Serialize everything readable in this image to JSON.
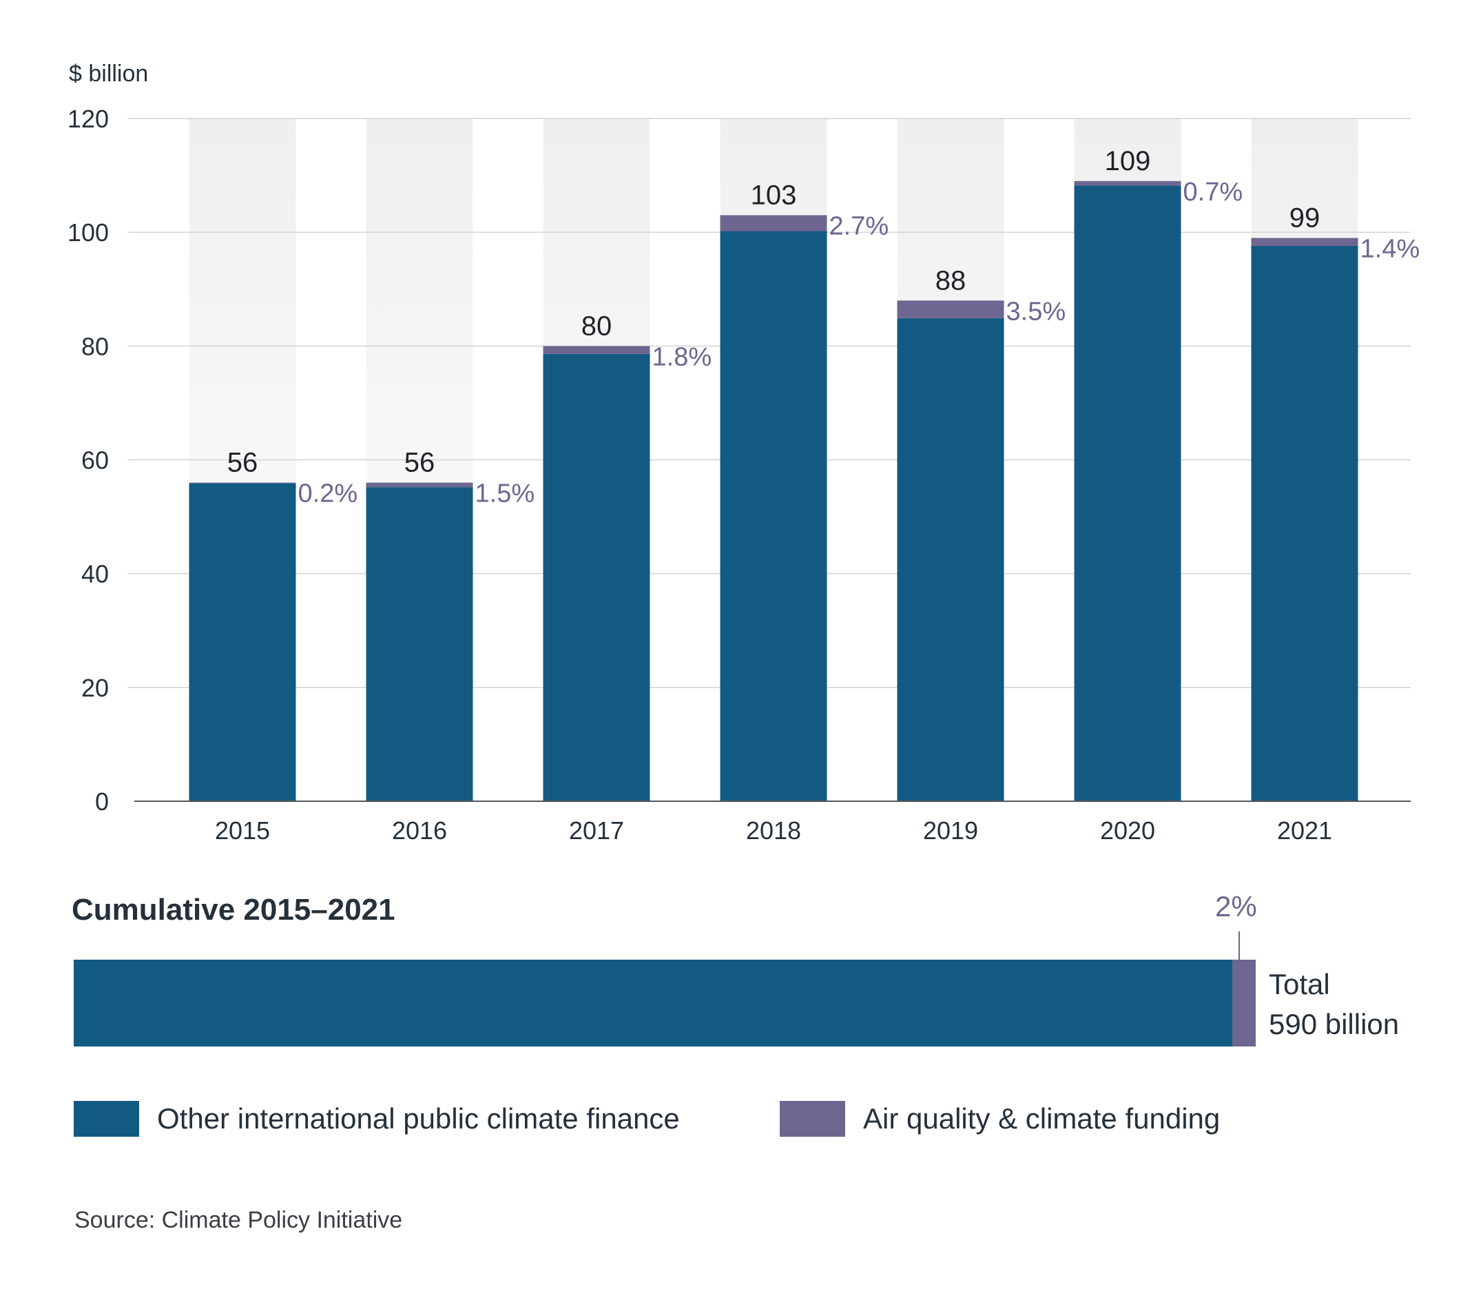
{
  "colors": {
    "main": "#135a83",
    "air": "#6e6690",
    "bg_column": "#eef0f0"
  },
  "chart_data": {
    "type": "bar",
    "stacked": true,
    "ylabel": "$ billion",
    "ylim": [
      0,
      120
    ],
    "yticks": [
      0,
      20,
      40,
      60,
      80,
      100,
      120
    ],
    "grid": true,
    "categories": [
      "2015",
      "2016",
      "2017",
      "2018",
      "2019",
      "2020",
      "2021"
    ],
    "totals": [
      56,
      56,
      80,
      103,
      88,
      109,
      99
    ],
    "total_labels": [
      "56",
      "56",
      "80",
      "103",
      "88",
      "109",
      "99"
    ],
    "air_share_labels": [
      "0.2%",
      "1.5%",
      "1.8%",
      "2.7%",
      "3.5%",
      "0.7%",
      "1.4%"
    ],
    "series": [
      {
        "name": "Other international public climate finance",
        "values": [
          55.9,
          55.2,
          78.6,
          100.2,
          84.9,
          108.2,
          97.6
        ]
      },
      {
        "name": "Air quality & climate funding",
        "values": [
          0.1,
          0.8,
          1.4,
          2.8,
          3.1,
          0.8,
          1.4
        ]
      }
    ]
  },
  "cumulative": {
    "title": "Cumulative 2015–2021",
    "air_share": 0.02,
    "air_share_label": "2%",
    "total_line1": "Total",
    "total_line2": "590 billion"
  },
  "legend": {
    "main_label": "Other international public climate finance",
    "air_label": "Air quality & climate funding"
  },
  "source": "Source: Climate Policy Initiative"
}
